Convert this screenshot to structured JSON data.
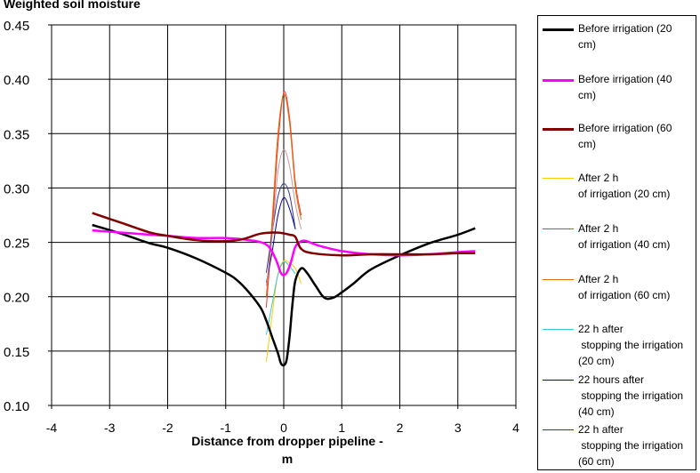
{
  "chart_data": {
    "type": "line",
    "ylabel": "Weighted soil moisture",
    "xlabel": "Distance from dropper pipeline - m",
    "xlim": [
      -4,
      4
    ],
    "ylim": [
      0.1,
      0.45
    ],
    "x_ticks": [
      "-4",
      "-3",
      "-2",
      "-1",
      "0",
      "1",
      "2",
      "3",
      "4"
    ],
    "y_ticks": [
      "0.10",
      "0.15",
      "0.20",
      "0.25",
      "0.30",
      "0.35",
      "0.40",
      "0.45"
    ],
    "grid": true,
    "legend_position": "right",
    "series": [
      {
        "name": "Before irrigation (20 cm)",
        "color": "#000000",
        "width": 2.5,
        "points": [
          [
            -3.3,
            0.266
          ],
          [
            -2.8,
            0.258
          ],
          [
            -2.3,
            0.249
          ],
          [
            -2.0,
            0.245
          ],
          [
            -1.5,
            0.235
          ],
          [
            -1.0,
            0.222
          ],
          [
            -0.8,
            0.215
          ],
          [
            -0.6,
            0.204
          ],
          [
            -0.4,
            0.19
          ],
          [
            -0.3,
            0.178
          ],
          [
            -0.2,
            0.163
          ],
          [
            -0.1,
            0.148
          ],
          [
            -0.05,
            0.139
          ],
          [
            0.0,
            0.137
          ],
          [
            0.05,
            0.142
          ],
          [
            0.1,
            0.163
          ],
          [
            0.15,
            0.193
          ],
          [
            0.2,
            0.215
          ],
          [
            0.3,
            0.226
          ],
          [
            0.4,
            0.222
          ],
          [
            0.55,
            0.21
          ],
          [
            0.7,
            0.199
          ],
          [
            0.85,
            0.199
          ],
          [
            1.0,
            0.204
          ],
          [
            1.2,
            0.212
          ],
          [
            1.5,
            0.225
          ],
          [
            2.0,
            0.238
          ],
          [
            2.5,
            0.249
          ],
          [
            3.0,
            0.257
          ],
          [
            3.3,
            0.263
          ]
        ]
      },
      {
        "name": "Before irrigation (40 cm)",
        "color": "#ff00ff",
        "width": 2.5,
        "points": [
          [
            -3.3,
            0.261
          ],
          [
            -2.8,
            0.259
          ],
          [
            -2.3,
            0.257
          ],
          [
            -2.0,
            0.256
          ],
          [
            -1.5,
            0.254
          ],
          [
            -1.0,
            0.254
          ],
          [
            -0.6,
            0.252
          ],
          [
            -0.3,
            0.248
          ],
          [
            -0.15,
            0.236
          ],
          [
            -0.05,
            0.222
          ],
          [
            0.0,
            0.22
          ],
          [
            0.05,
            0.222
          ],
          [
            0.12,
            0.231
          ],
          [
            0.2,
            0.246
          ],
          [
            0.3,
            0.251
          ],
          [
            0.4,
            0.251
          ],
          [
            0.6,
            0.247
          ],
          [
            1.0,
            0.242
          ],
          [
            1.5,
            0.239
          ],
          [
            2.0,
            0.238
          ],
          [
            2.5,
            0.239
          ],
          [
            3.0,
            0.241
          ],
          [
            3.3,
            0.242
          ]
        ]
      },
      {
        "name": "Before irrigation (60 cm)",
        "color": "#800000",
        "width": 2.5,
        "points": [
          [
            -3.3,
            0.277
          ],
          [
            -2.8,
            0.268
          ],
          [
            -2.3,
            0.259
          ],
          [
            -2.0,
            0.256
          ],
          [
            -1.5,
            0.252
          ],
          [
            -1.0,
            0.251
          ],
          [
            -0.7,
            0.253
          ],
          [
            -0.4,
            0.258
          ],
          [
            -0.1,
            0.259
          ],
          [
            0.1,
            0.257
          ],
          [
            0.2,
            0.255
          ],
          [
            0.3,
            0.244
          ],
          [
            0.5,
            0.24
          ],
          [
            1.0,
            0.238
          ],
          [
            1.5,
            0.239
          ],
          [
            2.0,
            0.239
          ],
          [
            2.5,
            0.239
          ],
          [
            3.0,
            0.24
          ],
          [
            3.3,
            0.24
          ]
        ]
      },
      {
        "name": "After 2 h of irrigation (20 cm)",
        "color": "#ffcc00",
        "width": 1,
        "points": [
          [
            -0.3,
            0.14
          ],
          [
            -0.2,
            0.183
          ],
          [
            -0.1,
            0.221
          ],
          [
            0.0,
            0.233
          ],
          [
            0.1,
            0.231
          ],
          [
            0.2,
            0.226
          ],
          [
            0.3,
            0.212
          ]
        ]
      },
      {
        "name": "After 2 h of irrigation (40 cm)",
        "color": "#ff3030",
        "width": 1,
        "points": [
          [
            -0.3,
            0.19
          ],
          [
            -0.2,
            0.26
          ],
          [
            -0.1,
            0.34
          ],
          [
            0.0,
            0.388
          ],
          [
            0.1,
            0.365
          ],
          [
            0.2,
            0.305
          ],
          [
            0.3,
            0.275
          ]
        ]
      },
      {
        "name": "After 2 h of irrigation (60 cm)",
        "color": "#e07000",
        "width": 1,
        "points": [
          [
            -0.3,
            0.2
          ],
          [
            -0.2,
            0.27
          ],
          [
            -0.1,
            0.35
          ],
          [
            0.0,
            0.386
          ],
          [
            0.1,
            0.36
          ],
          [
            0.2,
            0.3
          ],
          [
            0.3,
            0.271
          ]
        ]
      },
      {
        "name": "22 h after stopping the irrigation (20 cm)",
        "color": "#33ccdd",
        "width": 1,
        "points": [
          [
            -0.3,
            0.165
          ],
          [
            -0.2,
            0.193
          ],
          [
            -0.1,
            0.22
          ],
          [
            0.0,
            0.232
          ],
          [
            0.1,
            0.228
          ],
          [
            0.2,
            0.221
          ]
        ]
      },
      {
        "name": "22 hours after stopping the irrigation (40 cm)",
        "color": "#0000a0",
        "width": 1,
        "points": [
          [
            -0.3,
            0.213
          ],
          [
            -0.2,
            0.241
          ],
          [
            -0.1,
            0.275
          ],
          [
            0.0,
            0.291
          ],
          [
            0.1,
            0.281
          ],
          [
            0.2,
            0.262
          ]
        ]
      },
      {
        "name": "22 h after stopping the irrigation (60 cm)",
        "color": "#333399",
        "width": 1,
        "points": [
          [
            -0.3,
            0.222
          ],
          [
            -0.2,
            0.258
          ],
          [
            -0.1,
            0.292
          ],
          [
            0.0,
            0.304
          ],
          [
            0.1,
            0.294
          ],
          [
            0.2,
            0.262
          ]
        ]
      },
      {
        "name": "",
        "color": "#cc9999",
        "width": 1,
        "points": [
          [
            -0.3,
            0.21
          ],
          [
            -0.2,
            0.255
          ],
          [
            -0.1,
            0.315
          ],
          [
            0.0,
            0.335
          ],
          [
            0.1,
            0.32
          ],
          [
            0.2,
            0.285
          ],
          [
            0.3,
            0.262
          ]
        ]
      }
    ]
  },
  "legend": [
    {
      "lines": [
        "Before irrigation (20",
        "cm)"
      ],
      "color": "#000000",
      "width": 2.5
    },
    {
      "lines": [
        "Before irrigation (40",
        "cm)"
      ],
      "color": "#ff00ff",
      "width": 2.5
    },
    {
      "lines": [
        "Before irrigation (60",
        "cm)"
      ],
      "color": "#800000",
      "width": 2.5
    },
    {
      "lines": [
        "After 2 h",
        "of irrigation (20 cm)"
      ],
      "color": "#ffcc00",
      "width": 1
    },
    {
      "lines": [
        "After 2 h",
        "of irrigation (40 cm)"
      ],
      "color": "#ff3030",
      "width": 1
    },
    {
      "lines": [
        "After 2 h",
        "of irrigation (60 cm)"
      ],
      "color": "#e07000",
      "width": 1
    },
    {
      "lines": [
        "22 h after",
        " stopping the irrigation",
        "(20 cm)"
      ],
      "color": "#33ccdd",
      "width": 1
    },
    {
      "lines": [
        "22 hours after",
        " stopping the irrigation",
        "(40 cm)"
      ],
      "color": "#0000a0",
      "width": 1
    },
    {
      "lines": [
        "22 h after",
        " stopping the irrigation",
        "(60 cm)"
      ],
      "color": "#333399",
      "width": 1
    }
  ]
}
